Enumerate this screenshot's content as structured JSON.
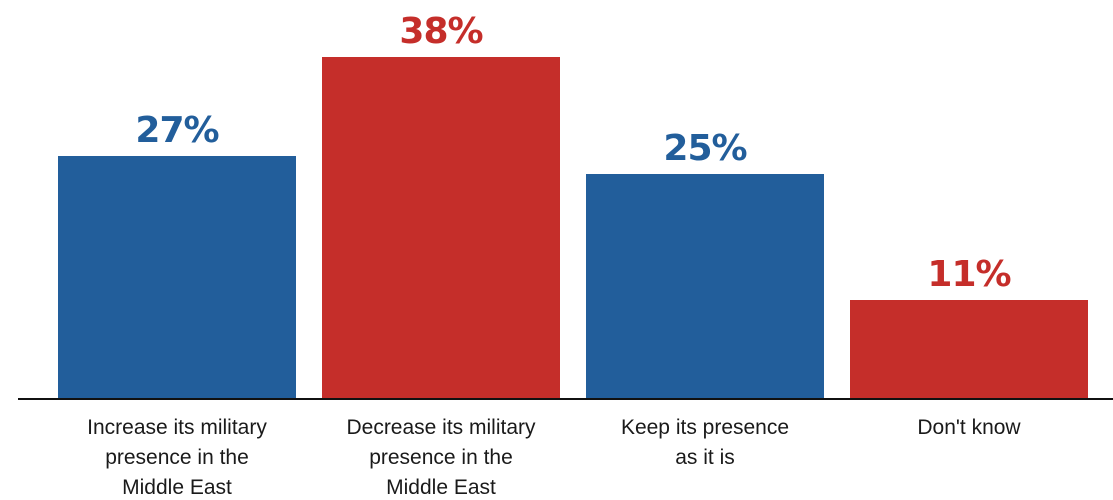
{
  "chart_data": {
    "type": "bar",
    "categories": [
      [
        "Increase its military",
        "presence in the",
        "Middle East"
      ],
      [
        "Decrease its military",
        "presence in the",
        "Middle East"
      ],
      [
        "Keep its presence",
        "as it is"
      ],
      [
        "Don't know"
      ]
    ],
    "values": [
      27,
      38,
      25,
      11
    ],
    "value_labels": [
      "27%",
      "38%",
      "25%",
      "11%"
    ],
    "bar_colors": [
      "#225e9b",
      "#c52e2a",
      "#225e9b",
      "#c52e2a"
    ],
    "ylim": [
      0,
      38
    ],
    "grid": false,
    "legend": "none"
  }
}
